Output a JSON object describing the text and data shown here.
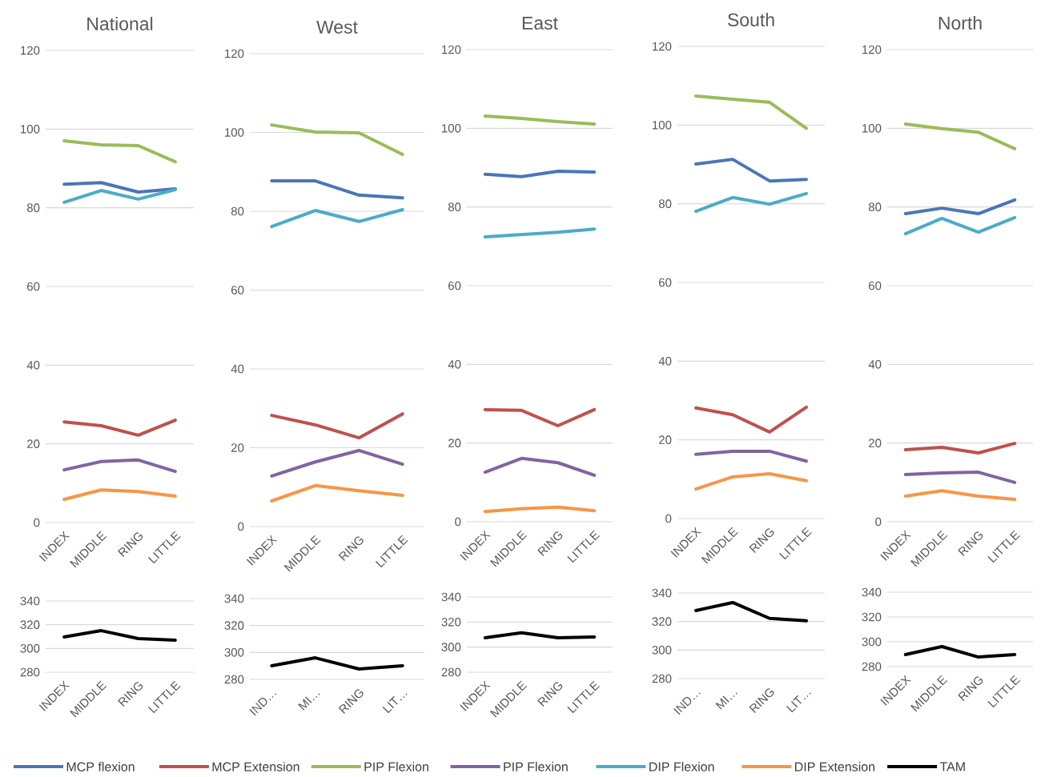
{
  "chart_data": [
    {
      "type": "line",
      "title": "National",
      "categories": [
        "INDEX",
        "MIDDLE",
        "RING",
        "LITTLE"
      ],
      "ylim": [
        0,
        120
      ],
      "yticks": [
        0,
        20,
        40,
        60,
        80,
        100,
        120
      ],
      "grid": "y",
      "legend": "bottom",
      "series": [
        {
          "name": "MCP flexion",
          "color": "#4a76b8",
          "values": [
            86.0,
            86.4,
            84.0,
            84.8
          ]
        },
        {
          "name": "MCP Extension",
          "color": "#c0504d",
          "values": [
            25.6,
            24.6,
            22.2,
            26.0
          ]
        },
        {
          "name": "PIP Flexion",
          "color": "#9bbb59",
          "values": [
            97.0,
            96.0,
            95.8,
            91.7
          ]
        },
        {
          "name": "PIP Flexion",
          "color": "#8064a2",
          "values": [
            13.4,
            15.5,
            15.9,
            13.0
          ]
        },
        {
          "name": "DIP Flexion",
          "color": "#4bacc6",
          "values": [
            81.4,
            84.4,
            82.2,
            84.6
          ]
        },
        {
          "name": "DIP Extension",
          "color": "#f79646",
          "values": [
            5.9,
            8.3,
            7.9,
            6.7
          ]
        }
      ]
    },
    {
      "type": "line",
      "title": "West",
      "categories": [
        "INDEX",
        "MIDDLE",
        "RING",
        "LITTLE"
      ],
      "ylim": [
        0,
        120
      ],
      "yticks": [
        0,
        20,
        40,
        60,
        80,
        100,
        120
      ],
      "grid": "y",
      "series": [
        {
          "color": "#4a76b8",
          "values": [
            87.7,
            87.7,
            84.1,
            83.4
          ]
        },
        {
          "color": "#c0504d",
          "values": [
            28.2,
            25.8,
            22.5,
            28.6
          ]
        },
        {
          "color": "#9bbb59",
          "values": [
            101.9,
            100.1,
            99.9,
            94.4
          ]
        },
        {
          "color": "#8064a2",
          "values": [
            12.8,
            16.4,
            19.3,
            15.8
          ]
        },
        {
          "color": "#4bacc6",
          "values": [
            76.1,
            80.2,
            77.4,
            80.4
          ]
        },
        {
          "color": "#f79646",
          "values": [
            6.5,
            10.4,
            9.1,
            7.9
          ]
        }
      ]
    },
    {
      "type": "line",
      "title": "East",
      "categories": [
        "INDEX",
        "MIDDLE",
        "RING",
        "LITTLE"
      ],
      "ylim": [
        0,
        120
      ],
      "yticks": [
        0,
        20,
        40,
        60,
        80,
        100,
        120
      ],
      "grid": "y",
      "series": [
        {
          "color": "#4a76b8",
          "values": [
            88.3,
            87.7,
            89.1,
            88.9
          ]
        },
        {
          "color": "#c0504d",
          "values": [
            28.5,
            28.3,
            24.4,
            28.5
          ]
        },
        {
          "color": "#9bbb59",
          "values": [
            103.1,
            102.5,
            101.7,
            101.1
          ]
        },
        {
          "color": "#8064a2",
          "values": [
            12.6,
            16.1,
            15.0,
            11.8
          ]
        },
        {
          "color": "#4bacc6",
          "values": [
            72.4,
            73.0,
            73.6,
            74.4
          ]
        },
        {
          "color": "#f79646",
          "values": [
            2.6,
            3.3,
            3.7,
            2.8
          ]
        }
      ]
    },
    {
      "type": "line",
      "title": "South",
      "categories": [
        "INDEX",
        "MIDDLE",
        "RING",
        "LITTLE"
      ],
      "ylim": [
        0,
        120
      ],
      "yticks": [
        0,
        20,
        40,
        60,
        80,
        100,
        120
      ],
      "grid": "y",
      "series": [
        {
          "color": "#4a76b8",
          "values": [
            90.1,
            91.3,
            85.8,
            86.2
          ]
        },
        {
          "color": "#c0504d",
          "values": [
            28.1,
            26.4,
            22.0,
            28.3
          ]
        },
        {
          "color": "#9bbb59",
          "values": [
            107.4,
            106.6,
            105.8,
            99.2
          ]
        },
        {
          "color": "#8064a2",
          "values": [
            16.3,
            17.1,
            17.1,
            14.6
          ]
        },
        {
          "color": "#4bacc6",
          "values": [
            78.1,
            81.6,
            79.9,
            82.6
          ]
        },
        {
          "color": "#f79646",
          "values": [
            7.5,
            10.6,
            11.4,
            9.6
          ]
        }
      ]
    },
    {
      "type": "line",
      "title": "North",
      "categories": [
        "INDEX",
        "MIDDLE",
        "RING",
        "LITTLE"
      ],
      "ylim": [
        0,
        120
      ],
      "yticks": [
        0,
        20,
        40,
        60,
        80,
        100,
        120
      ],
      "grid": "y",
      "series": [
        {
          "color": "#4a76b8",
          "values": [
            78.3,
            79.7,
            78.3,
            81.8
          ]
        },
        {
          "color": "#c0504d",
          "values": [
            18.3,
            18.9,
            17.5,
            19.9
          ]
        },
        {
          "color": "#9bbb59",
          "values": [
            101.1,
            99.9,
            99.0,
            94.8
          ]
        },
        {
          "color": "#8064a2",
          "values": [
            12.0,
            12.4,
            12.6,
            10.0
          ]
        },
        {
          "color": "#4bacc6",
          "values": [
            73.2,
            77.1,
            73.6,
            77.3
          ]
        },
        {
          "color": "#f79646",
          "values": [
            6.5,
            7.9,
            6.5,
            5.7
          ]
        }
      ]
    },
    {
      "type": "line",
      "categories": [
        "INDEX",
        "MIDDLE",
        "RING",
        "LITTLE"
      ],
      "ylim": [
        280,
        340
      ],
      "yticks": [
        280,
        300,
        320,
        340
      ],
      "grid": "y",
      "legend": "bottom",
      "series": [
        {
          "name": "TAM",
          "color": "#000000",
          "values": [
            309.7,
            315,
            308.3,
            307
          ]
        }
      ]
    },
    {
      "type": "line",
      "categories": [
        "IND…",
        "MI…",
        "RING",
        "LIT…"
      ],
      "ylim": [
        280,
        340
      ],
      "yticks": [
        280,
        300,
        320,
        340
      ],
      "grid": "y",
      "series": [
        {
          "color": "#000000",
          "values": [
            290.1,
            296,
            287.7,
            290.1
          ]
        }
      ]
    },
    {
      "type": "line",
      "categories": [
        "INDEX",
        "MIDDLE",
        "RING",
        "LITTLE"
      ],
      "ylim": [
        280,
        340
      ],
      "yticks": [
        280,
        300,
        320,
        340
      ],
      "grid": "y",
      "series": [
        {
          "color": "#000000",
          "values": [
            307.5,
            311.5,
            307.5,
            308.1
          ]
        }
      ]
    },
    {
      "type": "line",
      "categories": [
        "IND…",
        "MI…",
        "RING",
        "LIT…"
      ],
      "ylim": [
        280,
        340
      ],
      "yticks": [
        280,
        300,
        320,
        340
      ],
      "grid": "y",
      "series": [
        {
          "color": "#000000",
          "values": [
            327.7,
            333.3,
            322.2,
            320.5
          ]
        }
      ]
    },
    {
      "type": "line",
      "categories": [
        "INDEX",
        "MIDDLE",
        "RING",
        "LITTLE"
      ],
      "ylim": [
        280,
        340
      ],
      "yticks": [
        280,
        300,
        320,
        340
      ],
      "grid": "y",
      "series": [
        {
          "color": "#000000",
          "values": [
            289.7,
            296.1,
            287.7,
            289.7
          ]
        }
      ]
    }
  ]
}
